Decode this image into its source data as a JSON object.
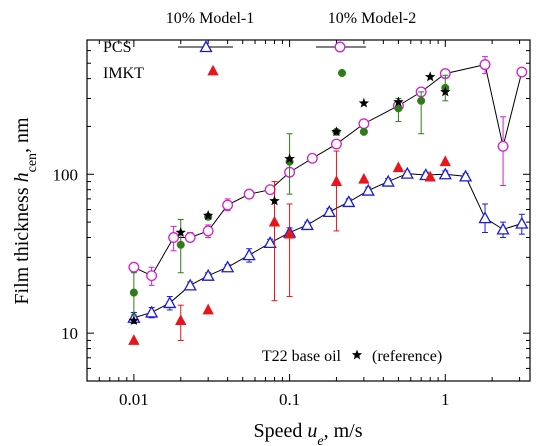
{
  "chart_data": {
    "type": "scatter",
    "xlabel": "Speed u_e, m/s",
    "ylabel": "Film thickness h_cen, nm",
    "x_scale": "log",
    "y_scale": "log",
    "xlim": [
      0.005,
      3.5
    ],
    "ylim": [
      5,
      700
    ],
    "x_ticks": [
      "0.01",
      "0.1",
      "1"
    ],
    "y_ticks": [
      "10",
      "100"
    ],
    "grid": false,
    "legend": {
      "position": "top",
      "columns": [
        "10% Model-1",
        "10% Model-2"
      ],
      "rows": [
        "PCS",
        "IMKT"
      ]
    },
    "annotation": {
      "text_left": "T22 base oil",
      "text_right": "(reference)"
    },
    "series": [
      {
        "name": "10% Model-1 PCS",
        "color": "#1a1adb",
        "marker": "open-triangle",
        "points": [
          {
            "x": 0.01,
            "y": 12.5,
            "lo": 11.5,
            "hi": 13.5
          },
          {
            "x": 0.013,
            "y": 13.5,
            "lo": 12.5,
            "hi": 14.5
          },
          {
            "x": 0.017,
            "y": 15.5,
            "lo": 14,
            "hi": 17
          },
          {
            "x": 0.023,
            "y": 20,
            "lo": 19,
            "hi": 21
          },
          {
            "x": 0.03,
            "y": 23,
            "lo": 22,
            "hi": 24
          },
          {
            "x": 0.04,
            "y": 26,
            "lo": 25,
            "hi": 27
          },
          {
            "x": 0.055,
            "y": 31,
            "lo": 28,
            "hi": 34
          },
          {
            "x": 0.075,
            "y": 37,
            "lo": 35,
            "hi": 39
          },
          {
            "x": 0.1,
            "y": 43,
            "lo": 40,
            "hi": 46
          },
          {
            "x": 0.13,
            "y": 48,
            "lo": 46,
            "hi": 50
          },
          {
            "x": 0.18,
            "y": 58,
            "lo": 55,
            "hi": 61
          },
          {
            "x": 0.24,
            "y": 67,
            "lo": 64,
            "hi": 70
          },
          {
            "x": 0.32,
            "y": 79,
            "lo": 75,
            "hi": 83
          },
          {
            "x": 0.43,
            "y": 90,
            "lo": 86,
            "hi": 94
          },
          {
            "x": 0.57,
            "y": 101,
            "lo": 97,
            "hi": 105
          },
          {
            "x": 0.75,
            "y": 99,
            "lo": 95,
            "hi": 103
          },
          {
            "x": 1.0,
            "y": 100,
            "lo": 95,
            "hi": 105
          },
          {
            "x": 1.35,
            "y": 97,
            "lo": 93,
            "hi": 101
          },
          {
            "x": 1.8,
            "y": 53,
            "lo": 43,
            "hi": 65
          },
          {
            "x": 2.35,
            "y": 45,
            "lo": 40,
            "hi": 50
          },
          {
            "x": 3.1,
            "y": 49,
            "lo": 42,
            "hi": 56
          }
        ]
      },
      {
        "name": "10% Model-2 PCS",
        "color": "#d21fd2",
        "marker": "open-circle",
        "points": [
          {
            "x": 0.01,
            "y": 26,
            "lo": 24.5,
            "hi": 27.5
          },
          {
            "x": 0.013,
            "y": 23,
            "lo": 20,
            "hi": 26
          },
          {
            "x": 0.018,
            "y": 40,
            "lo": 33,
            "hi": 47
          },
          {
            "x": 0.023,
            "y": 40,
            "lo": 38,
            "hi": 43
          },
          {
            "x": 0.03,
            "y": 44,
            "lo": 40,
            "hi": 48
          },
          {
            "x": 0.04,
            "y": 64,
            "lo": 59,
            "hi": 70
          },
          {
            "x": 0.055,
            "y": 75,
            "lo": 72,
            "hi": 78
          },
          {
            "x": 0.075,
            "y": 80,
            "lo": 77,
            "hi": 83
          },
          {
            "x": 0.1,
            "y": 103,
            "lo": 98,
            "hi": 108
          },
          {
            "x": 0.14,
            "y": 126,
            "lo": 121,
            "hi": 131
          },
          {
            "x": 0.2,
            "y": 155,
            "lo": 149,
            "hi": 161
          },
          {
            "x": 0.3,
            "y": 208,
            "lo": 198,
            "hi": 218
          },
          {
            "x": 0.5,
            "y": 270,
            "lo": 258,
            "hi": 282
          },
          {
            "x": 0.7,
            "y": 330,
            "lo": 315,
            "hi": 345
          },
          {
            "x": 1.0,
            "y": 430,
            "lo": 405,
            "hi": 455
          },
          {
            "x": 1.8,
            "y": 490,
            "lo": 430,
            "hi": 550
          },
          {
            "x": 2.35,
            "y": 150,
            "lo": 85,
            "hi": 230
          },
          {
            "x": 3.1,
            "y": 440,
            "lo": 420,
            "hi": 460
          }
        ]
      },
      {
        "name": "10% Model-1 IMKT",
        "color": "#e8161b",
        "marker": "filled-triangle",
        "points": [
          {
            "x": 0.01,
            "y": 9
          },
          {
            "x": 0.02,
            "y": 12,
            "lo": 9,
            "hi": 15
          },
          {
            "x": 0.03,
            "y": 14
          },
          {
            "x": 0.08,
            "y": 50,
            "lo": 16,
            "hi": 90
          },
          {
            "x": 0.1,
            "y": 42,
            "lo": 17,
            "hi": 65
          },
          {
            "x": 0.2,
            "y": 90,
            "lo": 44,
            "hi": 140
          },
          {
            "x": 0.3,
            "y": 93
          },
          {
            "x": 0.5,
            "y": 110
          },
          {
            "x": 0.8,
            "y": 96
          },
          {
            "x": 1.0,
            "y": 120
          }
        ]
      },
      {
        "name": "10% Model-2 IMKT",
        "color": "#2e7d1a",
        "marker": "filled-circle",
        "points": [
          {
            "x": 0.01,
            "y": 18,
            "lo": 13,
            "hi": 24
          },
          {
            "x": 0.02,
            "y": 36,
            "lo": 24,
            "hi": 52
          },
          {
            "x": 0.03,
            "y": 54
          },
          {
            "x": 0.1,
            "y": 120,
            "lo": 75,
            "hi": 180
          },
          {
            "x": 0.2,
            "y": 185
          },
          {
            "x": 0.3,
            "y": 185
          },
          {
            "x": 0.5,
            "y": 260,
            "lo": 215,
            "hi": 300
          },
          {
            "x": 0.7,
            "y": 290,
            "lo": 180,
            "hi": 330
          },
          {
            "x": 1.0,
            "y": 350,
            "lo": 290,
            "hi": 420
          }
        ]
      },
      {
        "name": "T22 base oil",
        "color": "#000000",
        "marker": "filled-star",
        "points": [
          {
            "x": 0.01,
            "y": 12
          },
          {
            "x": 0.02,
            "y": 43
          },
          {
            "x": 0.03,
            "y": 55
          },
          {
            "x": 0.08,
            "y": 68
          },
          {
            "x": 0.1,
            "y": 125
          },
          {
            "x": 0.2,
            "y": 185
          },
          {
            "x": 0.3,
            "y": 280
          },
          {
            "x": 0.5,
            "y": 285
          },
          {
            "x": 0.8,
            "y": 410
          },
          {
            "x": 1.0,
            "y": 330
          }
        ]
      }
    ]
  }
}
